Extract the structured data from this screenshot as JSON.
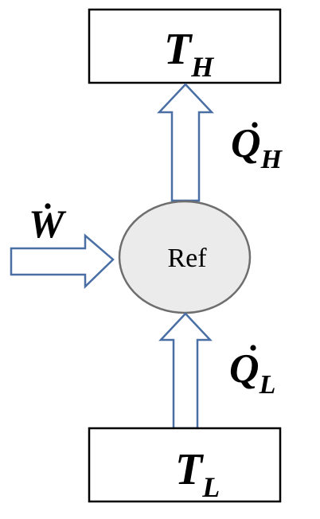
{
  "hot_reservoir": {
    "symbol": "T",
    "subscript": "H"
  },
  "cold_reservoir": {
    "symbol": "T",
    "subscript": "L"
  },
  "refrigerator": {
    "label": "Ref"
  },
  "heat_out": {
    "symbol": "Q",
    "subscript": "H"
  },
  "heat_in": {
    "symbol": "Q",
    "subscript": "L"
  },
  "work_in": {
    "symbol": "W"
  },
  "colors": {
    "arrow_stroke": "#4a6fa5",
    "ellipse_fill": "#ebebeb",
    "ellipse_stroke": "#6e6e6e",
    "box_stroke": "#000000"
  }
}
